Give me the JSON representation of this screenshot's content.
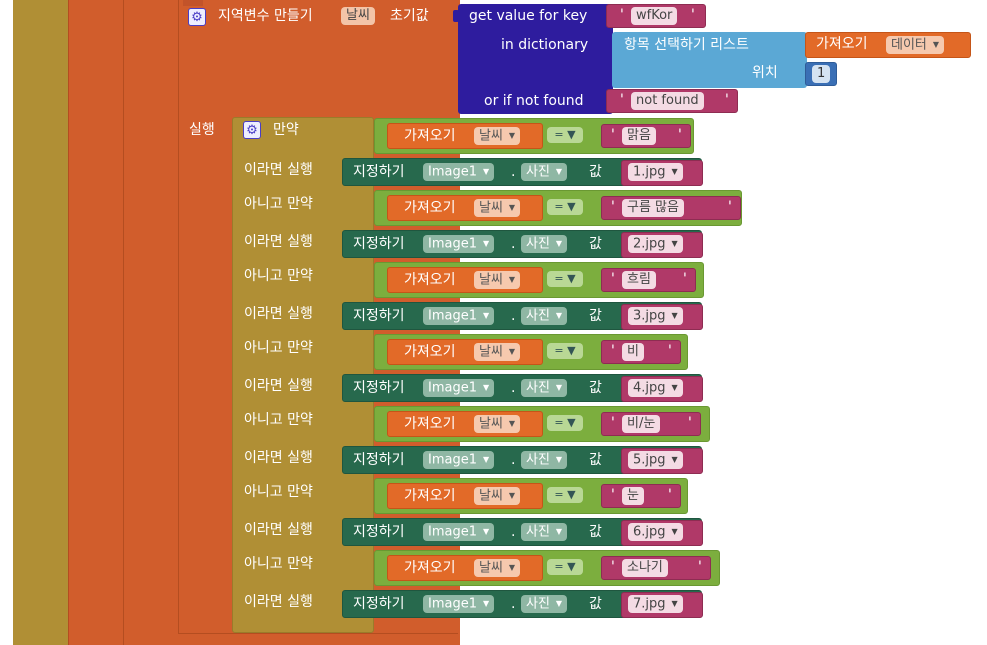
{
  "colors": {
    "background": "#ffffff",
    "control": "#b08f35",
    "procedure": "#d15d2c",
    "variables": "#d15d2c",
    "dictionary": "#2e1c9e",
    "lists": "#5ba8d5",
    "logic": "#7cae3e",
    "text": "#b03968",
    "component_setter": "#27694d"
  },
  "local_var": {
    "label": "지역변수 만들기",
    "name": "날씨",
    "init_label": "초기값"
  },
  "dict_get": {
    "label": "get value for key",
    "key": "wfKor",
    "in_label": "in dictionary",
    "notfound_label": "or if not found",
    "notfound_value": "not found"
  },
  "list_pick": {
    "label": "항목 선택하기  리스트",
    "index_label": "위치",
    "index": "1"
  },
  "get_data": {
    "label": "가져오기",
    "var": "데이터"
  },
  "do_label": "실행",
  "if_block": {
    "if_label": "만약",
    "then_label": "이라면 실행",
    "elseif_label": "아니고 만약",
    "branches": [
      {
        "get": "가져오기",
        "var": "날씨",
        "op": "=",
        "value": "맑음",
        "set": "지정하기",
        "component": "Image1",
        "prop": "사진",
        "val_label": "값",
        "file": "1.jpg"
      },
      {
        "get": "가져오기",
        "var": "날씨",
        "op": "=",
        "value": "구름 많음",
        "set": "지정하기",
        "component": "Image1",
        "prop": "사진",
        "val_label": "값",
        "file": "2.jpg"
      },
      {
        "get": "가져오기",
        "var": "날씨",
        "op": "=",
        "value": "흐림",
        "set": "지정하기",
        "component": "Image1",
        "prop": "사진",
        "val_label": "값",
        "file": "3.jpg"
      },
      {
        "get": "가져오기",
        "var": "날씨",
        "op": "=",
        "value": "비",
        "set": "지정하기",
        "component": "Image1",
        "prop": "사진",
        "val_label": "값",
        "file": "4.jpg"
      },
      {
        "get": "가져오기",
        "var": "날씨",
        "op": "=",
        "value": "비/눈",
        "set": "지정하기",
        "component": "Image1",
        "prop": "사진",
        "val_label": "값",
        "file": "5.jpg"
      },
      {
        "get": "가져오기",
        "var": "날씨",
        "op": "=",
        "value": "눈",
        "set": "지정하기",
        "component": "Image1",
        "prop": "사진",
        "val_label": "값",
        "file": "6.jpg"
      },
      {
        "get": "가져오기",
        "var": "날씨",
        "op": "=",
        "value": "소나기",
        "set": "지정하기",
        "component": "Image1",
        "prop": "사진",
        "val_label": "값",
        "file": "7.jpg"
      }
    ]
  }
}
